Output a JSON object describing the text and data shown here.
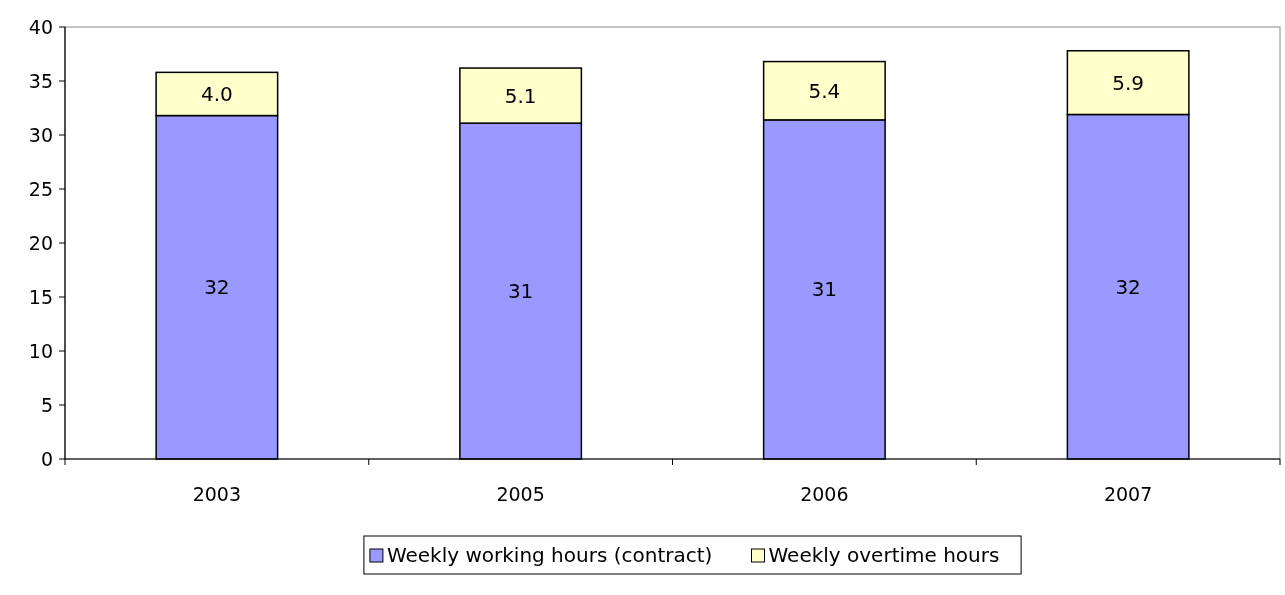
{
  "chart_data": {
    "type": "bar",
    "stacked": true,
    "categories": [
      "2003",
      "2005",
      "2006",
      "2007"
    ],
    "series": [
      {
        "name": "Weekly working hours (contract)",
        "color": "#9999ff",
        "values": [
          31.8,
          31.1,
          31.4,
          31.9
        ],
        "value_labels": [
          "32",
          "31",
          "31",
          "32"
        ]
      },
      {
        "name": "Weekly overtime hours",
        "color": "#ffffcc",
        "values": [
          4.0,
          5.1,
          5.4,
          5.9
        ],
        "value_labels": [
          "4.0",
          "5.1",
          "5.4",
          "5.9"
        ]
      }
    ],
    "ylim": [
      0,
      40
    ],
    "yticks": [
      0,
      5,
      10,
      15,
      20,
      25,
      30,
      35,
      40
    ],
    "grid": false,
    "legend": "bottom"
  }
}
